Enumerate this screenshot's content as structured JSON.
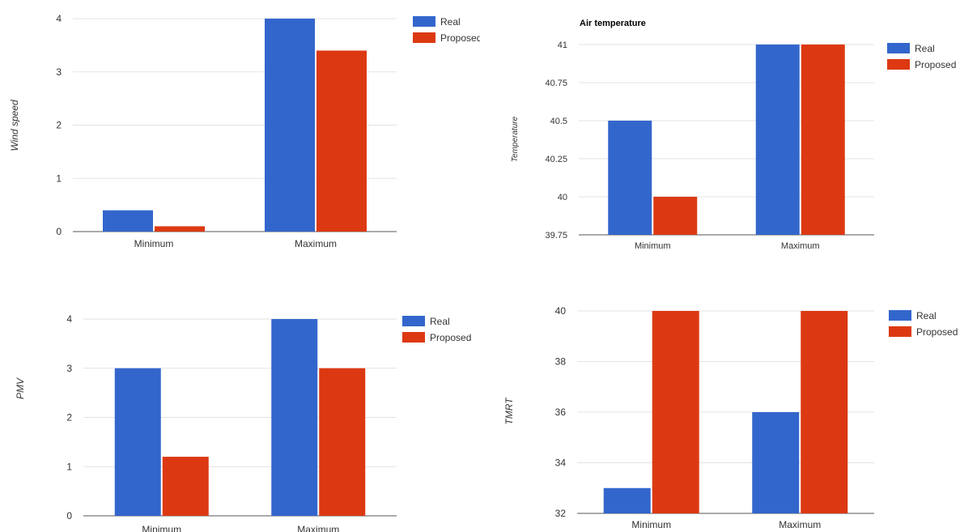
{
  "colors": {
    "real": "#3366cc",
    "proposed": "#dc3912",
    "grid": "#e3e3e3",
    "axis": "#555555",
    "text": "#333333"
  },
  "chart_data": [
    {
      "type": "bar",
      "title": "",
      "xlabel": "",
      "ylabel": "Wind speed",
      "categories": [
        "Minimum",
        "Maximum"
      ],
      "series": [
        {
          "name": "Real",
          "values": [
            0.4,
            4
          ]
        },
        {
          "name": "Proposed",
          "values": [
            0.1,
            3.4
          ]
        }
      ],
      "ylim": [
        0,
        4
      ],
      "yticks": [
        "0",
        "1",
        "2",
        "3",
        "4"
      ],
      "grid": true,
      "legend": "top-right"
    },
    {
      "type": "bar",
      "title": "Air temperature",
      "xlabel": "",
      "ylabel": "Temperature",
      "categories": [
        "Minimum",
        "Maximum"
      ],
      "series": [
        {
          "name": "Real",
          "values": [
            40.5,
            41
          ]
        },
        {
          "name": "Proposed",
          "values": [
            40,
            41
          ]
        }
      ],
      "ylim": [
        39.75,
        41
      ],
      "yticks": [
        "39.75",
        "40",
        "40.25",
        "40.5",
        "40.75",
        "41"
      ],
      "grid": true,
      "legend": "top-right"
    },
    {
      "type": "bar",
      "title": "",
      "xlabel": "",
      "ylabel": "PMV",
      "categories": [
        "Minimum",
        "Maximum"
      ],
      "series": [
        {
          "name": "Real",
          "values": [
            3,
            4
          ]
        },
        {
          "name": "Proposed",
          "values": [
            1.2,
            3
          ]
        }
      ],
      "ylim": [
        0,
        4
      ],
      "yticks": [
        "0",
        "1",
        "2",
        "3",
        "4"
      ],
      "grid": true,
      "legend": "top-right"
    },
    {
      "type": "bar",
      "title": "",
      "xlabel": "",
      "ylabel": "TMRT",
      "categories": [
        "Minimum",
        "Maximum"
      ],
      "series": [
        {
          "name": "Real",
          "values": [
            33,
            36
          ]
        },
        {
          "name": "Proposed",
          "values": [
            40,
            40
          ]
        }
      ],
      "ylim": [
        32,
        40
      ],
      "yticks": [
        "32",
        "34",
        "36",
        "38",
        "40"
      ],
      "grid": true,
      "legend": "top-right"
    }
  ]
}
